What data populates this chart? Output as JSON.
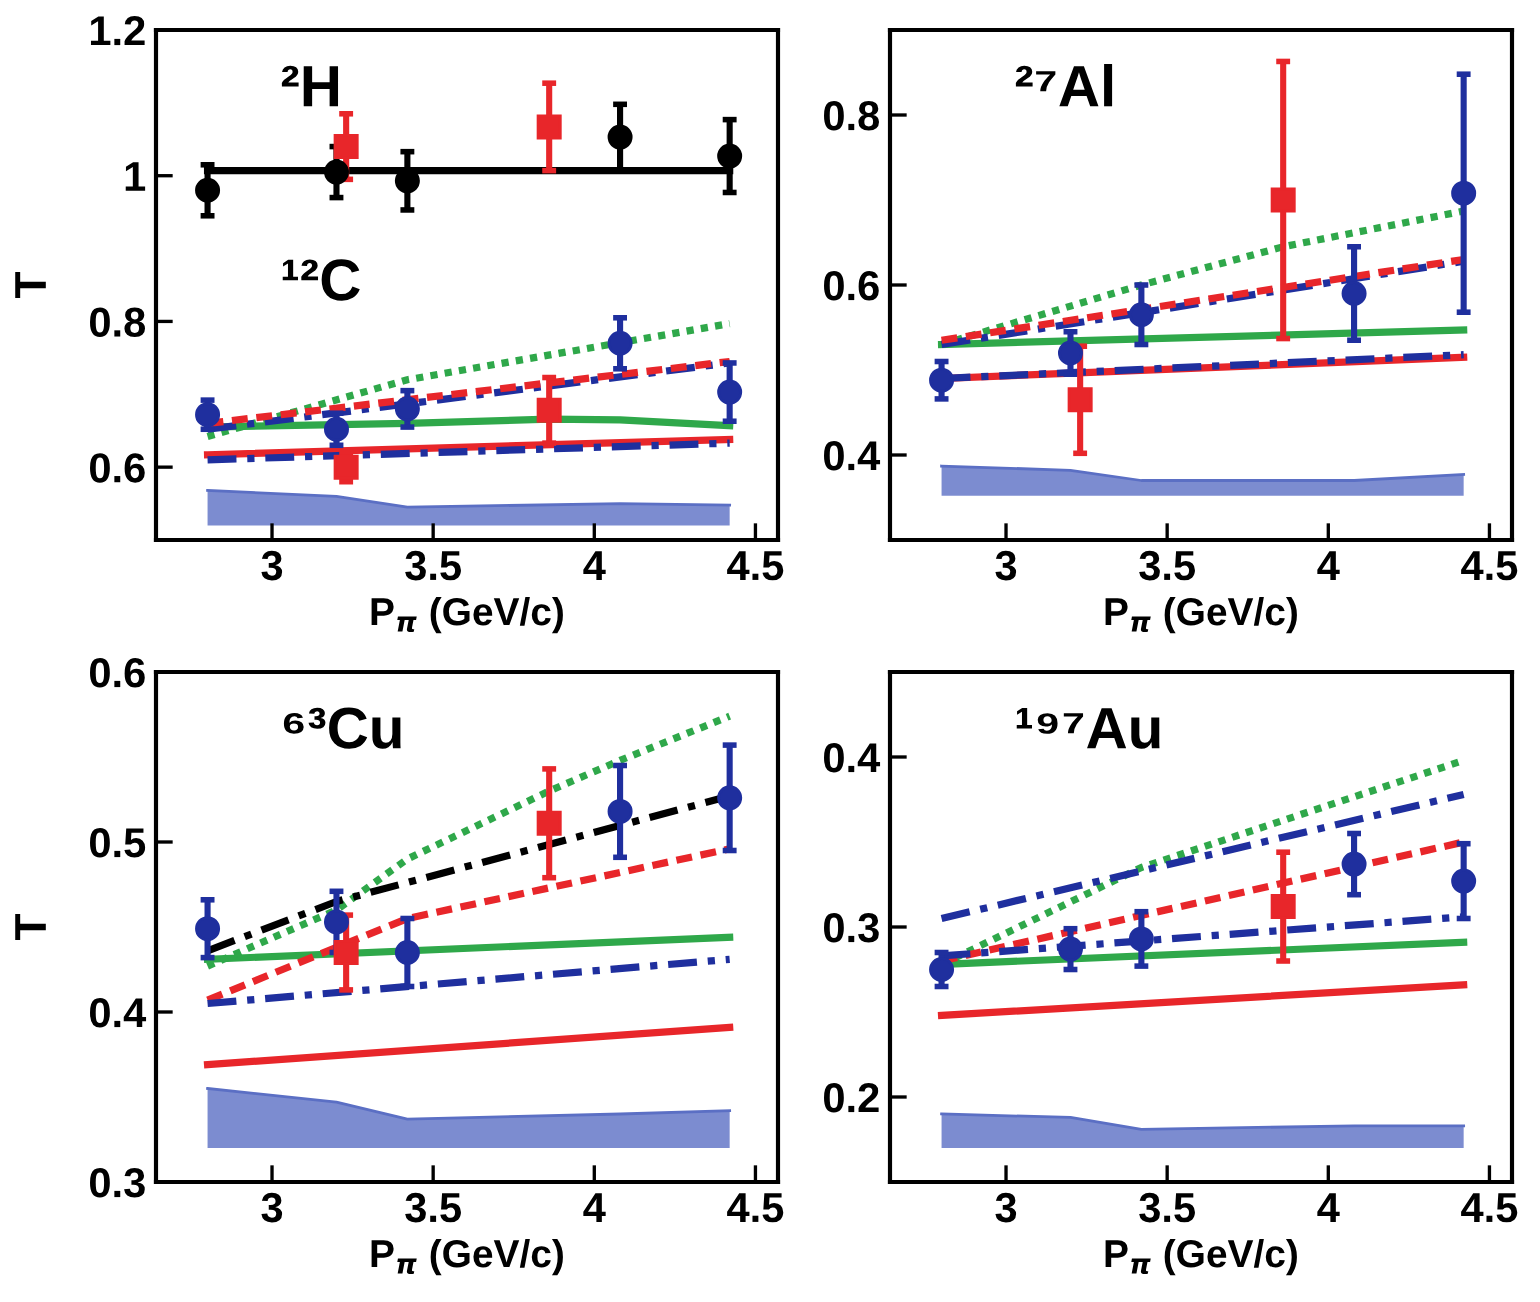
{
  "chart_data": [
    {
      "type": "scatter",
      "ylabel": "T",
      "xlabel": "P$_{π}$ (GeV/c)",
      "annotations": [
        "²H",
        "¹²C"
      ],
      "xlim": [
        2.64,
        4.57
      ],
      "xticks": [
        3,
        3.5,
        4,
        4.5
      ],
      "ylim": [
        0.5,
        1.2
      ],
      "yticks": [
        0.6,
        0.8,
        1,
        1.2
      ],
      "grid": false,
      "legend": false,
      "series": [
        {
          "type": "line",
          "color": "#5b6fc4",
          "x": [
            2.8,
            3.2,
            3.42,
            4.08,
            4.42
          ],
          "values": [
            0.568,
            0.56,
            0.545,
            0.55,
            0.548
          ],
          "upper": [
            0.568,
            0.56,
            0.545,
            0.55,
            0.548
          ],
          "lower": [
            0.52,
            0.52,
            0.52,
            0.52,
            0.52
          ]
        },
        {
          "type": "line",
          "color": "#000000",
          "line_style": "solid",
          "x": [
            2.8,
            4.42
          ],
          "values": [
            1.007,
            1.007
          ]
        },
        {
          "type": "line",
          "color": "#2fa84a",
          "line_style": "dotted",
          "x": [
            2.8,
            3.42,
            4.42
          ],
          "values": [
            0.642,
            0.72,
            0.797
          ]
        },
        {
          "type": "line",
          "color": "#1f2f9e",
          "line_style": "dashdot",
          "x": [
            2.8,
            4.42
          ],
          "values": [
            0.652,
            0.743
          ]
        },
        {
          "type": "line",
          "color": "#e8262a",
          "line_style": "dashed",
          "x": [
            2.8,
            4.42
          ],
          "values": [
            0.66,
            0.745
          ]
        },
        {
          "type": "line",
          "color": "#2fa84a",
          "line_style": "solid",
          "x": [
            2.8,
            3.42,
            3.86,
            4.08,
            4.42
          ],
          "values": [
            0.655,
            0.66,
            0.666,
            0.665,
            0.657
          ]
        },
        {
          "type": "line",
          "color": "#1f2f9e",
          "line_style": "dashdot",
          "x": [
            2.8,
            4.42
          ],
          "values": [
            0.61,
            0.633
          ]
        },
        {
          "type": "line",
          "color": "#e8262a",
          "line_style": "solid",
          "x": [
            2.8,
            4.42
          ],
          "values": [
            0.617,
            0.638
          ]
        },
        {
          "color": "#000000",
          "marker": "circle",
          "x": [
            2.8,
            3.2,
            3.42,
            4.08,
            4.42
          ],
          "values": [
            0.98,
            1.005,
            0.993,
            1.053,
            1.027
          ],
          "errors": [
            0.035,
            0.035,
            0.04,
            0.045,
            0.05
          ]
        },
        {
          "color": "#e8262a",
          "marker": "square",
          "x": [
            3.23,
            3.86
          ],
          "values": [
            1.04,
            1.067
          ],
          "errors": [
            0.045,
            0.06
          ]
        },
        {
          "color": "#1f2f9e",
          "marker": "circle",
          "x": [
            2.8,
            3.2,
            3.42,
            4.08,
            4.42
          ],
          "values": [
            0.672,
            0.652,
            0.68,
            0.77,
            0.703
          ],
          "errors": [
            0.02,
            0.022,
            0.025,
            0.035,
            0.04
          ]
        },
        {
          "color": "#e8262a",
          "marker": "square",
          "x": [
            3.23,
            3.86
          ],
          "values": [
            0.6,
            0.678
          ],
          "errors": [
            0.02,
            0.045
          ]
        }
      ]
    },
    {
      "type": "scatter",
      "xlabel": "P$_{π}$ (GeV/c)",
      "annotations": [
        "²⁷Al"
      ],
      "xlim": [
        2.64,
        4.57
      ],
      "xticks": [
        3,
        3.5,
        4,
        4.5
      ],
      "ylim": [
        0.3,
        0.9
      ],
      "yticks": [
        0.4,
        0.6,
        0.8
      ],
      "grid": false,
      "legend": false,
      "series": [
        {
          "type": "line",
          "color": "#5b6fc4",
          "x": [
            2.8,
            3.2,
            3.42,
            4.08,
            4.42
          ],
          "values": [
            0.387,
            0.382,
            0.37,
            0.37,
            0.377
          ],
          "upper": [
            0.387,
            0.382,
            0.37,
            0.37,
            0.377
          ],
          "lower": [
            0.352,
            0.352,
            0.352,
            0.352,
            0.352
          ]
        },
        {
          "type": "line",
          "color": "#2fa84a",
          "line_style": "dotted",
          "x": [
            2.8,
            3.42,
            3.86,
            4.42
          ],
          "values": [
            0.53,
            0.6,
            0.645,
            0.687
          ]
        },
        {
          "type": "line",
          "color": "#1f2f9e",
          "line_style": "dashdot",
          "x": [
            2.8,
            4.42
          ],
          "values": [
            0.53,
            0.628
          ]
        },
        {
          "type": "line",
          "color": "#e8262a",
          "line_style": "dashed",
          "x": [
            2.8,
            4.42
          ],
          "values": [
            0.535,
            0.63
          ]
        },
        {
          "type": "line",
          "color": "#2fa84a",
          "line_style": "solid",
          "x": [
            2.8,
            4.42
          ],
          "values": [
            0.53,
            0.547
          ]
        },
        {
          "type": "line",
          "color": "#1f2f9e",
          "line_style": "dashdot",
          "x": [
            2.8,
            4.42
          ],
          "values": [
            0.49,
            0.518
          ]
        },
        {
          "type": "line",
          "color": "#e8262a",
          "line_style": "solid",
          "x": [
            2.8,
            4.42
          ],
          "values": [
            0.49,
            0.515
          ]
        },
        {
          "color": "#1f2f9e",
          "marker": "circle",
          "x": [
            2.8,
            3.2,
            3.42,
            4.08,
            4.42
          ],
          "values": [
            0.488,
            0.52,
            0.565,
            0.59,
            0.708
          ],
          "errors": [
            0.022,
            0.025,
            0.035,
            0.055,
            0.14
          ]
        },
        {
          "color": "#e8262a",
          "marker": "square",
          "x": [
            3.23,
            3.86
          ],
          "values": [
            0.465,
            0.7
          ],
          "errors": [
            0.063,
            0.163
          ]
        }
      ]
    },
    {
      "type": "scatter",
      "ylabel": "T",
      "xlabel": "P$_{π}$ (GeV/c)",
      "annotations": [
        "⁶³Cu"
      ],
      "xlim": [
        2.64,
        4.57
      ],
      "xticks": [
        3,
        3.5,
        4,
        4.5
      ],
      "ylim": [
        0.3,
        0.6
      ],
      "yticks": [
        0.3,
        0.4,
        0.5,
        0.6
      ],
      "grid": false,
      "legend": false,
      "series": [
        {
          "type": "line",
          "color": "#5b6fc4",
          "x": [
            2.8,
            3.2,
            3.42,
            4.08,
            4.42
          ],
          "values": [
            0.355,
            0.347,
            0.337,
            0.34,
            0.342
          ],
          "upper": [
            0.355,
            0.347,
            0.337,
            0.34,
            0.342
          ],
          "lower": [
            0.32,
            0.32,
            0.32,
            0.32,
            0.32
          ]
        },
        {
          "type": "line",
          "color": "#2fa84a",
          "line_style": "dotted",
          "x": [
            2.8,
            3.2,
            3.42,
            3.86,
            4.08,
            4.42
          ],
          "values": [
            0.427,
            0.46,
            0.49,
            0.53,
            0.548,
            0.574
          ]
        },
        {
          "type": "line",
          "color": "#000000",
          "line_style": "dashdot",
          "x": [
            2.8,
            3.2,
            4.42
          ],
          "values": [
            0.436,
            0.465,
            0.527
          ]
        },
        {
          "type": "line",
          "color": "#e8262a",
          "line_style": "dashed",
          "x": [
            2.8,
            3.42,
            4.42
          ],
          "values": [
            0.407,
            0.455,
            0.496
          ]
        },
        {
          "type": "line",
          "color": "#2fa84a",
          "line_style": "solid",
          "x": [
            2.8,
            4.42
          ],
          "values": [
            0.431,
            0.444
          ]
        },
        {
          "type": "line",
          "color": "#1f2f9e",
          "line_style": "dashdot",
          "x": [
            2.8,
            4.42
          ],
          "values": [
            0.405,
            0.431
          ]
        },
        {
          "type": "line",
          "color": "#e8262a",
          "line_style": "solid",
          "x": [
            2.8,
            4.42
          ],
          "values": [
            0.369,
            0.391
          ]
        },
        {
          "color": "#1f2f9e",
          "marker": "circle",
          "x": [
            2.8,
            3.2,
            3.42,
            4.08,
            4.42
          ],
          "values": [
            0.449,
            0.453,
            0.435,
            0.518,
            0.526
          ],
          "errors": [
            0.017,
            0.018,
            0.02,
            0.027,
            0.031
          ]
        },
        {
          "color": "#e8262a",
          "marker": "square",
          "x": [
            3.23,
            3.86
          ],
          "values": [
            0.435,
            0.511
          ],
          "errors": [
            0.022,
            0.032
          ]
        }
      ]
    },
    {
      "type": "scatter",
      "xlabel": "P$_{π}$ (GeV/c)",
      "annotations": [
        "¹⁹⁷Au"
      ],
      "xlim": [
        2.64,
        4.57
      ],
      "xticks": [
        3,
        3.5,
        4,
        4.5
      ],
      "ylim": [
        0.15,
        0.45
      ],
      "yticks": [
        0.2,
        0.3,
        0.4
      ],
      "grid": false,
      "legend": false,
      "series": [
        {
          "type": "line",
          "color": "#5b6fc4",
          "x": [
            2.8,
            3.2,
            3.42,
            4.08,
            4.42
          ],
          "values": [
            0.19,
            0.188,
            0.181,
            0.183,
            0.183
          ],
          "upper": [
            0.19,
            0.188,
            0.181,
            0.183,
            0.183
          ],
          "lower": [
            0.17,
            0.17,
            0.17,
            0.17,
            0.17
          ]
        },
        {
          "type": "line",
          "color": "#2fa84a",
          "line_style": "dotted",
          "x": [
            2.8,
            3.42,
            4.42
          ],
          "values": [
            0.278,
            0.335,
            0.398
          ]
        },
        {
          "type": "line",
          "color": "#1f2f9e",
          "line_style": "dashdot",
          "x": [
            2.8,
            4.42
          ],
          "values": [
            0.305,
            0.378
          ]
        },
        {
          "type": "line",
          "color": "#e8262a",
          "line_style": "dashed",
          "x": [
            2.8,
            4.42
          ],
          "values": [
            0.28,
            0.35
          ]
        },
        {
          "type": "line",
          "color": "#1f2f9e",
          "line_style": "dashdot",
          "x": [
            2.8,
            4.42
          ],
          "values": [
            0.283,
            0.306
          ]
        },
        {
          "type": "line",
          "color": "#2fa84a",
          "line_style": "solid",
          "x": [
            2.8,
            4.42
          ],
          "values": [
            0.278,
            0.291
          ]
        },
        {
          "type": "line",
          "color": "#e8262a",
          "line_style": "solid",
          "x": [
            2.8,
            4.42
          ],
          "values": [
            0.248,
            0.266
          ]
        },
        {
          "color": "#1f2f9e",
          "marker": "circle",
          "x": [
            2.8,
            3.2,
            3.42,
            4.08,
            4.42
          ],
          "values": [
            0.275,
            0.287,
            0.293,
            0.337,
            0.327
          ],
          "errors": [
            0.01,
            0.012,
            0.016,
            0.018,
            0.022
          ]
        },
        {
          "color": "#e8262a",
          "marker": "square",
          "x": [
            3.86
          ],
          "values": [
            0.312
          ],
          "errors": [
            0.032
          ]
        }
      ]
    }
  ]
}
